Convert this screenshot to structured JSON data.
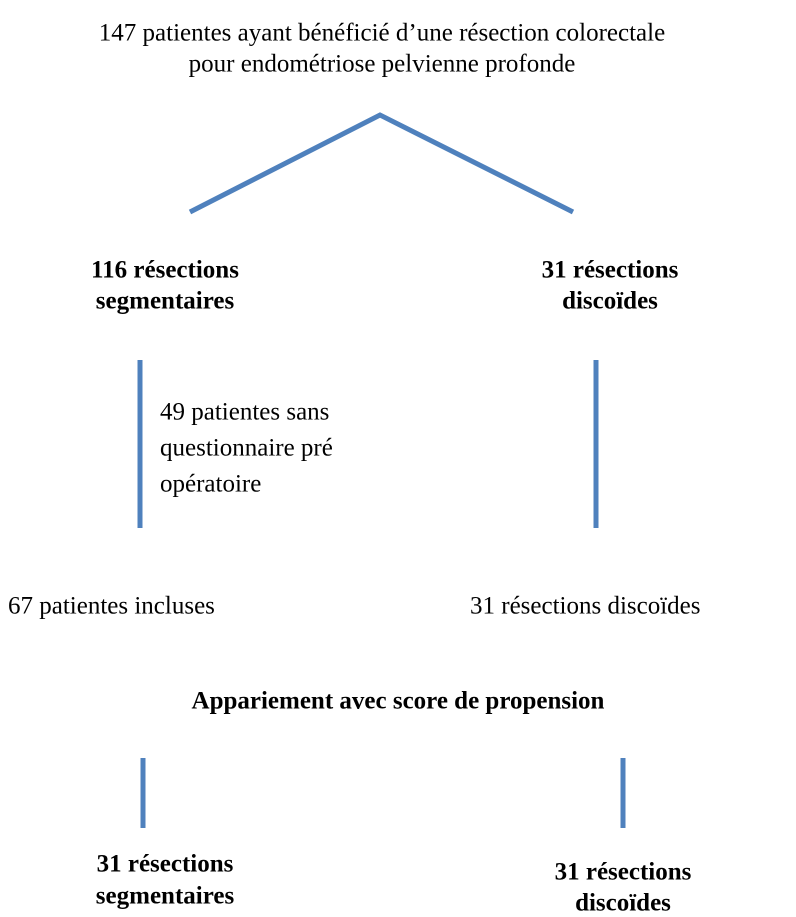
{
  "nodes": [
    {
      "lines": [
        "147 patientes ayant bénéficié d’une résection colorectale",
        "pour endométriose pelvienne profonde"
      ]
    },
    {
      "lines": [
        "116 résections",
        "segmentaires"
      ]
    },
    {
      "lines": [
        "31 résections",
        "discoïdes"
      ]
    },
    {
      "lines": [
        "49 patientes sans",
        "questionnaire pré",
        "opératoire"
      ]
    },
    {
      "lines": [
        "67 patientes incluses"
      ]
    },
    {
      "lines": [
        "31 résections discoïdes"
      ]
    },
    {
      "lines": [
        "Appariement avec score de propension"
      ]
    },
    {
      "lines": [
        "31 résections",
        "segmentaires"
      ]
    },
    {
      "lines": [
        "31 résections",
        "discoïdes"
      ]
    }
  ]
}
